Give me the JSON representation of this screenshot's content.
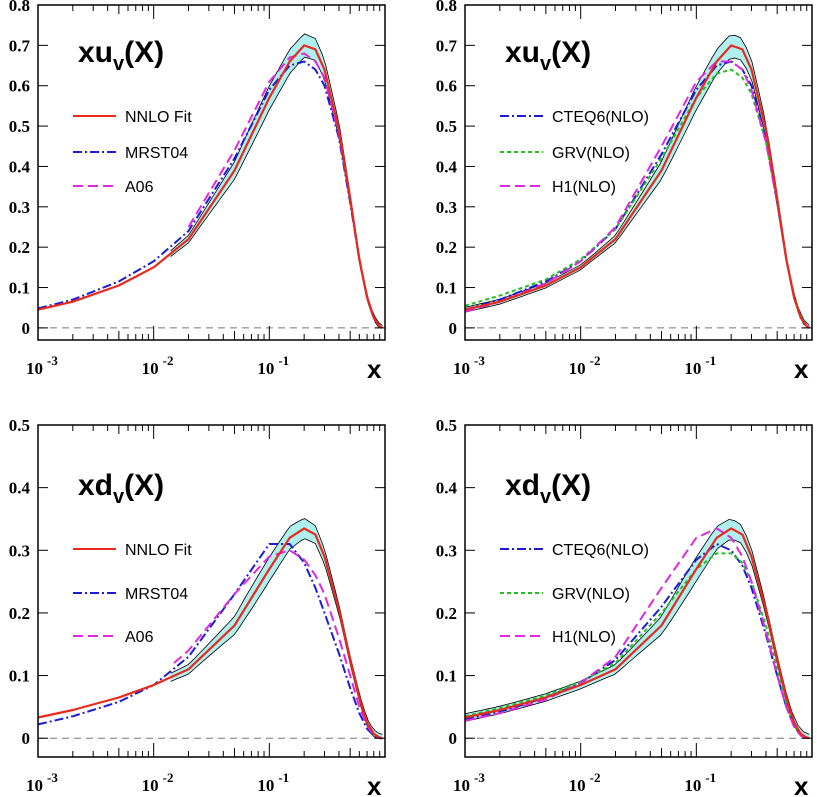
{
  "colors": {
    "nnlo": "#e8291c",
    "mrst": "#1c1cd6",
    "a06": "#e028e0",
    "cteq": "#1c1cd6",
    "grv": "#22c022",
    "h1": "#e028e0",
    "band": "#aef0f0"
  },
  "chart_data": [
    {
      "type": "line",
      "title_main": "xu",
      "title_sub": "v",
      "title_arg": "(X)",
      "xlabel": "x",
      "xscale": "log",
      "xlim": [
        0.001,
        1
      ],
      "ylim": [
        -0.03,
        0.8
      ],
      "yticks": [
        "0",
        "0.1",
        "0.2",
        "0.3",
        "0.4",
        "0.5",
        "0.6",
        "0.7",
        "0.8"
      ],
      "xtick_base": "10",
      "xtick_exps": [
        "-3",
        "-2",
        "-1"
      ],
      "band": {
        "xmin": 0.014
      },
      "series": [
        {
          "name": "NNLO Fit",
          "style": "solid",
          "key": "nnlo",
          "x": [
            0.001,
            0.002,
            0.005,
            0.01,
            0.02,
            0.05,
            0.1,
            0.15,
            0.2,
            0.25,
            0.3,
            0.4,
            0.5,
            0.6,
            0.7,
            0.8,
            0.9,
            0.95
          ],
          "y": [
            0.045,
            0.065,
            0.105,
            0.15,
            0.22,
            0.39,
            0.57,
            0.66,
            0.7,
            0.69,
            0.64,
            0.49,
            0.32,
            0.17,
            0.075,
            0.025,
            0.004,
            0.0
          ]
        },
        {
          "name": "MRST04",
          "style": "dashdot",
          "key": "mrst",
          "x": [
            0.001,
            0.002,
            0.005,
            0.01,
            0.02,
            0.05,
            0.1,
            0.15,
            0.2,
            0.25,
            0.3,
            0.4,
            0.5,
            0.6,
            0.7,
            0.8,
            0.9,
            0.95
          ],
          "y": [
            0.048,
            0.07,
            0.115,
            0.165,
            0.24,
            0.42,
            0.59,
            0.65,
            0.66,
            0.64,
            0.6,
            0.47,
            0.31,
            0.17,
            0.075,
            0.025,
            0.004,
            0.0
          ]
        },
        {
          "name": "A06",
          "style": "dashed",
          "key": "a06",
          "x": [
            0.02,
            0.05,
            0.1,
            0.15,
            0.2,
            0.25,
            0.3,
            0.4,
            0.5,
            0.6,
            0.7,
            0.8,
            0.9,
            0.95
          ],
          "y": [
            0.25,
            0.44,
            0.61,
            0.67,
            0.68,
            0.66,
            0.62,
            0.48,
            0.32,
            0.17,
            0.075,
            0.025,
            0.004,
            0.0
          ]
        }
      ]
    },
    {
      "type": "line",
      "title_main": "xu",
      "title_sub": "v",
      "title_arg": "(X)",
      "xlabel": "x",
      "xscale": "log",
      "xlim": [
        0.001,
        1
      ],
      "ylim": [
        -0.03,
        0.8
      ],
      "yticks": [
        "0",
        "0.1",
        "0.2",
        "0.3",
        "0.4",
        "0.5",
        "0.6",
        "0.7",
        "0.8"
      ],
      "xtick_base": "10",
      "xtick_exps": [
        "-3",
        "-2",
        "-1"
      ],
      "band": {
        "xmin": 0.001
      },
      "series": [
        {
          "name": "NNLO Fit",
          "style": "solid",
          "key": "nnlo",
          "x": [
            0.001,
            0.002,
            0.005,
            0.01,
            0.02,
            0.05,
            0.1,
            0.15,
            0.2,
            0.25,
            0.3,
            0.4,
            0.5,
            0.6,
            0.7,
            0.8,
            0.9,
            0.95
          ],
          "y": [
            0.045,
            0.065,
            0.105,
            0.15,
            0.22,
            0.39,
            0.57,
            0.66,
            0.7,
            0.69,
            0.64,
            0.49,
            0.32,
            0.17,
            0.075,
            0.025,
            0.004,
            0.0
          ]
        },
        {
          "name": "CTEQ6(NLO)",
          "style": "dashdot",
          "key": "cteq",
          "x": [
            0.001,
            0.002,
            0.005,
            0.01,
            0.02,
            0.05,
            0.1,
            0.15,
            0.2,
            0.25,
            0.3,
            0.4,
            0.5,
            0.6,
            0.7,
            0.8,
            0.9,
            0.95
          ],
          "y": [
            0.045,
            0.07,
            0.115,
            0.165,
            0.245,
            0.43,
            0.59,
            0.65,
            0.66,
            0.64,
            0.6,
            0.47,
            0.31,
            0.17,
            0.075,
            0.025,
            0.004,
            0.0
          ]
        },
        {
          "name": "GRV(NLO)",
          "style": "dotted",
          "key": "grv",
          "x": [
            0.001,
            0.002,
            0.005,
            0.01,
            0.02,
            0.05,
            0.1,
            0.15,
            0.2,
            0.25,
            0.3,
            0.4,
            0.5,
            0.6,
            0.7,
            0.8,
            0.9,
            0.95
          ],
          "y": [
            0.055,
            0.08,
            0.12,
            0.17,
            0.245,
            0.42,
            0.57,
            0.63,
            0.64,
            0.62,
            0.58,
            0.46,
            0.31,
            0.17,
            0.08,
            0.03,
            0.005,
            0.0
          ]
        },
        {
          "name": "H1(NLO)",
          "style": "dashed",
          "key": "h1",
          "x": [
            0.001,
            0.002,
            0.005,
            0.01,
            0.02,
            0.05,
            0.1,
            0.15,
            0.2,
            0.25,
            0.3,
            0.4,
            0.5,
            0.6,
            0.7,
            0.8,
            0.9,
            0.95
          ],
          "y": [
            0.04,
            0.065,
            0.11,
            0.165,
            0.25,
            0.45,
            0.61,
            0.66,
            0.66,
            0.64,
            0.59,
            0.46,
            0.31,
            0.17,
            0.075,
            0.025,
            0.004,
            0.0
          ]
        }
      ]
    },
    {
      "type": "line",
      "title_main": "xd",
      "title_sub": "v",
      "title_arg": "(X)",
      "xlabel": "x",
      "xscale": "log",
      "xlim": [
        0.001,
        1
      ],
      "ylim": [
        -0.03,
        0.5
      ],
      "yticks": [
        "0",
        "0.1",
        "0.2",
        "0.3",
        "0.4",
        "0.5"
      ],
      "xtick_base": "10",
      "xtick_exps": [
        "-3",
        "-2",
        "-1"
      ],
      "band": {
        "xmin": 0.014
      },
      "series": [
        {
          "name": "NNLO Fit",
          "style": "solid",
          "key": "nnlo",
          "x": [
            0.001,
            0.002,
            0.005,
            0.01,
            0.02,
            0.05,
            0.1,
            0.15,
            0.2,
            0.25,
            0.3,
            0.4,
            0.5,
            0.6,
            0.7,
            0.8,
            0.9,
            0.95
          ],
          "y": [
            0.033,
            0.045,
            0.065,
            0.085,
            0.11,
            0.18,
            0.27,
            0.32,
            0.335,
            0.325,
            0.29,
            0.205,
            0.125,
            0.065,
            0.025,
            0.007,
            0.001,
            0.0
          ]
        },
        {
          "name": "MRST04",
          "style": "dashdot",
          "key": "mrst",
          "x": [
            0.001,
            0.002,
            0.005,
            0.01,
            0.02,
            0.05,
            0.1,
            0.15,
            0.2,
            0.25,
            0.3,
            0.4,
            0.5,
            0.6,
            0.7,
            0.8,
            0.9,
            0.95
          ],
          "y": [
            0.022,
            0.035,
            0.058,
            0.085,
            0.13,
            0.23,
            0.31,
            0.31,
            0.28,
            0.24,
            0.2,
            0.135,
            0.08,
            0.04,
            0.015,
            0.004,
            0.0,
            0.0
          ]
        },
        {
          "name": "A06",
          "style": "dashed",
          "key": "a06",
          "x": [
            0.015,
            0.02,
            0.05,
            0.1,
            0.15,
            0.2,
            0.25,
            0.3,
            0.4,
            0.5,
            0.6,
            0.7,
            0.8,
            0.9,
            0.95
          ],
          "y": [
            0.12,
            0.14,
            0.23,
            0.29,
            0.3,
            0.285,
            0.26,
            0.23,
            0.16,
            0.1,
            0.05,
            0.02,
            0.005,
            0.0,
            0.0
          ]
        }
      ]
    },
    {
      "type": "line",
      "title_main": "xd",
      "title_sub": "v",
      "title_arg": "(X)",
      "xlabel": "x",
      "xscale": "log",
      "xlim": [
        0.001,
        1
      ],
      "ylim": [
        -0.03,
        0.5
      ],
      "yticks": [
        "0",
        "0.1",
        "0.2",
        "0.3",
        "0.4",
        "0.5"
      ],
      "xtick_base": "10",
      "xtick_exps": [
        "-3",
        "-2",
        "-1"
      ],
      "band": {
        "xmin": 0.001
      },
      "series": [
        {
          "name": "NNLO Fit",
          "style": "solid",
          "key": "nnlo",
          "x": [
            0.001,
            0.002,
            0.005,
            0.01,
            0.02,
            0.05,
            0.1,
            0.15,
            0.2,
            0.25,
            0.3,
            0.4,
            0.5,
            0.6,
            0.7,
            0.8,
            0.9,
            0.95
          ],
          "y": [
            0.033,
            0.045,
            0.065,
            0.085,
            0.11,
            0.18,
            0.27,
            0.32,
            0.335,
            0.325,
            0.29,
            0.205,
            0.125,
            0.065,
            0.025,
            0.007,
            0.001,
            0.0
          ]
        },
        {
          "name": "CTEQ6(NLO)",
          "style": "dashdot",
          "key": "cteq",
          "x": [
            0.001,
            0.002,
            0.005,
            0.01,
            0.02,
            0.05,
            0.1,
            0.15,
            0.2,
            0.25,
            0.3,
            0.4,
            0.5,
            0.6,
            0.7,
            0.8,
            0.9,
            0.95
          ],
          "y": [
            0.03,
            0.042,
            0.065,
            0.088,
            0.125,
            0.21,
            0.285,
            0.31,
            0.3,
            0.275,
            0.24,
            0.165,
            0.1,
            0.05,
            0.02,
            0.005,
            0.001,
            0.0
          ]
        },
        {
          "name": "GRV(NLO)",
          "style": "dotted",
          "key": "grv",
          "x": [
            0.001,
            0.002,
            0.005,
            0.01,
            0.02,
            0.05,
            0.1,
            0.15,
            0.2,
            0.25,
            0.3,
            0.4,
            0.5,
            0.6,
            0.7,
            0.8,
            0.9,
            0.95
          ],
          "y": [
            0.035,
            0.048,
            0.068,
            0.09,
            0.12,
            0.2,
            0.27,
            0.295,
            0.295,
            0.28,
            0.25,
            0.18,
            0.11,
            0.055,
            0.022,
            0.006,
            0.001,
            0.0
          ]
        },
        {
          "name": "H1(NLO)",
          "style": "dashed",
          "key": "h1",
          "x": [
            0.001,
            0.002,
            0.005,
            0.01,
            0.02,
            0.05,
            0.1,
            0.15,
            0.2,
            0.25,
            0.3,
            0.4,
            0.5,
            0.6,
            0.7,
            0.8,
            0.9,
            0.95
          ],
          "y": [
            0.028,
            0.04,
            0.062,
            0.088,
            0.13,
            0.24,
            0.32,
            0.335,
            0.32,
            0.29,
            0.25,
            0.17,
            0.1,
            0.05,
            0.018,
            0.004,
            0.0,
            0.0
          ]
        }
      ]
    }
  ]
}
